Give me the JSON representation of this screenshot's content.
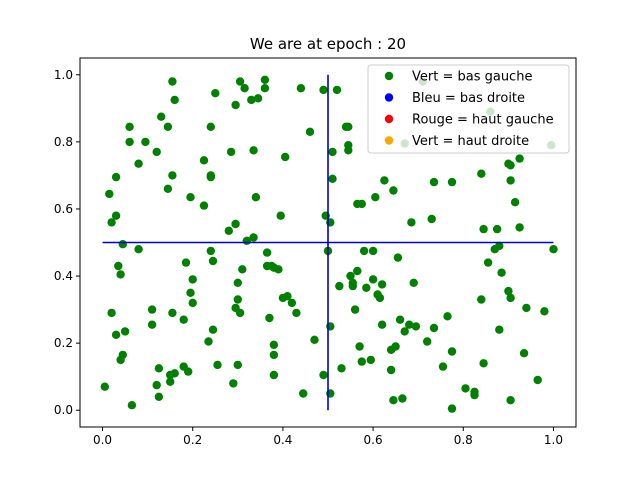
{
  "chart_data": {
    "type": "scatter",
    "title": "We are at epoch : 20",
    "xlabel": "",
    "ylabel": "",
    "xlim": [
      -0.05,
      1.05
    ],
    "ylim": [
      -0.05,
      1.05
    ],
    "grid": false,
    "legend_position": "top-right",
    "xticks": [
      "0.0",
      "0.2",
      "0.4",
      "0.6",
      "0.8",
      "1.0"
    ],
    "yticks": [
      "0.0",
      "0.2",
      "0.4",
      "0.6",
      "0.8",
      "1.0"
    ],
    "lines": [
      {
        "name": "vertical-divider",
        "x": [
          0.5,
          0.5
        ],
        "y": [
          0,
          1
        ],
        "color": "#0000cc"
      },
      {
        "name": "horizontal-divider",
        "x": [
          0,
          1
        ],
        "y": [
          0.5,
          0.5
        ],
        "color": "#0000cc"
      }
    ],
    "legend": [
      {
        "label": "Vert = bas gauche",
        "color": "#008000"
      },
      {
        "label": "Bleu = bas droite",
        "color": "#0000ff"
      },
      {
        "label": "Rouge = haut gauche",
        "color": "#ff0000"
      },
      {
        "label": "Vert = haut droite",
        "color": "#ffa500"
      }
    ],
    "series": [
      {
        "color": "#008000",
        "points": [
          [
            0.005,
            0.07
          ],
          [
            0.02,
            0.29
          ],
          [
            0.015,
            0.645
          ],
          [
            0.02,
            0.56
          ],
          [
            0.03,
            0.695
          ],
          [
            0.03,
            0.58
          ],
          [
            0.03,
            0.225
          ],
          [
            0.035,
            0.43
          ],
          [
            0.04,
            0.405
          ],
          [
            0.04,
            0.15
          ],
          [
            0.045,
            0.495
          ],
          [
            0.045,
            0.165
          ],
          [
            0.05,
            0.235
          ],
          [
            0.06,
            0.8
          ],
          [
            0.06,
            0.845
          ],
          [
            0.065,
            0.015
          ],
          [
            0.08,
            0.735
          ],
          [
            0.08,
            0.48
          ],
          [
            0.095,
            0.8
          ],
          [
            0.11,
            0.3
          ],
          [
            0.11,
            0.255
          ],
          [
            0.12,
            0.77
          ],
          [
            0.12,
            0.075
          ],
          [
            0.125,
            0.04
          ],
          [
            0.125,
            0.125
          ],
          [
            0.13,
            0.875
          ],
          [
            0.145,
            0.845
          ],
          [
            0.145,
            0.66
          ],
          [
            0.15,
            0.085
          ],
          [
            0.15,
            0.105
          ],
          [
            0.155,
            0.98
          ],
          [
            0.155,
            0.29
          ],
          [
            0.155,
            0.7
          ],
          [
            0.16,
            0.925
          ],
          [
            0.16,
            0.11
          ],
          [
            0.18,
            0.27
          ],
          [
            0.18,
            0.13
          ],
          [
            0.185,
            0.44
          ],
          [
            0.19,
            0.115
          ],
          [
            0.195,
            0.635
          ],
          [
            0.195,
            0.35
          ],
          [
            0.2,
            0.32
          ],
          [
            0.2,
            0.39
          ],
          [
            0.225,
            0.745
          ],
          [
            0.225,
            0.61
          ],
          [
            0.235,
            0.205
          ],
          [
            0.24,
            0.845
          ],
          [
            0.24,
            0.695
          ],
          [
            0.24,
            0.7
          ],
          [
            0.24,
            0.475
          ],
          [
            0.245,
            0.445
          ],
          [
            0.245,
            0.24
          ],
          [
            0.25,
            0.945
          ],
          [
            0.255,
            0.135
          ],
          [
            0.28,
            0.535
          ],
          [
            0.285,
            0.77
          ],
          [
            0.29,
            0.08
          ],
          [
            0.295,
            0.91
          ],
          [
            0.295,
            0.305
          ],
          [
            0.295,
            0.555
          ],
          [
            0.3,
            0.33
          ],
          [
            0.3,
            0.135
          ],
          [
            0.3,
            0.38
          ],
          [
            0.305,
            0.98
          ],
          [
            0.305,
            0.29
          ],
          [
            0.31,
            0.42
          ],
          [
            0.315,
            0.96
          ],
          [
            0.32,
            0.505
          ],
          [
            0.33,
            0.925
          ],
          [
            0.335,
            0.515
          ],
          [
            0.335,
            0.775
          ],
          [
            0.34,
            0.635
          ],
          [
            0.345,
            0.93
          ],
          [
            0.36,
            0.985
          ],
          [
            0.36,
            0.96
          ],
          [
            0.365,
            0.47
          ],
          [
            0.365,
            0.43
          ],
          [
            0.37,
            0.275
          ],
          [
            0.375,
            0.43
          ],
          [
            0.38,
            0.195
          ],
          [
            0.38,
            0.425
          ],
          [
            0.38,
            0.105
          ],
          [
            0.38,
            0.165
          ],
          [
            0.39,
            0.42
          ],
          [
            0.395,
            0.58
          ],
          [
            0.4,
            0.335
          ],
          [
            0.405,
            0.755
          ],
          [
            0.41,
            0.34
          ],
          [
            0.42,
            0.32
          ],
          [
            0.43,
            0.29
          ],
          [
            0.44,
            0.96
          ],
          [
            0.445,
            0.05
          ],
          [
            0.46,
            0.83
          ],
          [
            0.47,
            0.21
          ],
          [
            0.49,
            0.105
          ],
          [
            0.49,
            0.955
          ],
          [
            0.495,
            0.58
          ],
          [
            0.5,
            0.475
          ],
          [
            0.505,
            0.56
          ],
          [
            0.505,
            0.25
          ],
          [
            0.505,
            0.05
          ],
          [
            0.51,
            0.77
          ],
          [
            0.51,
            0.69
          ],
          [
            0.52,
            0.955
          ],
          [
            0.525,
            0.37
          ],
          [
            0.53,
            0.125
          ],
          [
            0.54,
            0.845
          ],
          [
            0.545,
            0.845
          ],
          [
            0.545,
            0.775
          ],
          [
            0.545,
            0.79
          ],
          [
            0.55,
            0.4
          ],
          [
            0.555,
            0.37
          ],
          [
            0.555,
            0.38
          ],
          [
            0.56,
            0.3
          ],
          [
            0.565,
            0.615
          ],
          [
            0.565,
            0.415
          ],
          [
            0.57,
            0.19
          ],
          [
            0.575,
            0.145
          ],
          [
            0.575,
            0.615
          ],
          [
            0.58,
            0.475
          ],
          [
            0.585,
            0.365
          ],
          [
            0.595,
            0.15
          ],
          [
            0.6,
            0.39
          ],
          [
            0.6,
            0.475
          ],
          [
            0.605,
            0.635
          ],
          [
            0.61,
            0.345
          ],
          [
            0.615,
            0.335
          ],
          [
            0.62,
            0.375
          ],
          [
            0.62,
            0.255
          ],
          [
            0.625,
            0.685
          ],
          [
            0.64,
            0.12
          ],
          [
            0.64,
            0.18
          ],
          [
            0.645,
            0.655
          ],
          [
            0.645,
            0.03
          ],
          [
            0.65,
            0.19
          ],
          [
            0.655,
            0.455
          ],
          [
            0.66,
            0.27
          ],
          [
            0.665,
            0.035
          ],
          [
            0.67,
            0.795
          ],
          [
            0.67,
            0.235
          ],
          [
            0.68,
            0.255
          ],
          [
            0.685,
            0.56
          ],
          [
            0.69,
            0.38
          ],
          [
            0.695,
            0.25
          ],
          [
            0.71,
            0.98
          ],
          [
            0.72,
            0.205
          ],
          [
            0.73,
            0.57
          ],
          [
            0.735,
            0.68
          ],
          [
            0.735,
            0.245
          ],
          [
            0.755,
            0.13
          ],
          [
            0.765,
            0.28
          ],
          [
            0.775,
            0.68
          ],
          [
            0.775,
            0.175
          ],
          [
            0.775,
            0.005
          ],
          [
            0.805,
            0.065
          ],
          [
            0.825,
            0.055
          ],
          [
            0.825,
            0.045
          ],
          [
            0.84,
            0.705
          ],
          [
            0.84,
            0.33
          ],
          [
            0.845,
            0.14
          ],
          [
            0.845,
            0.54
          ],
          [
            0.855,
            0.44
          ],
          [
            0.86,
            0.89
          ],
          [
            0.87,
            0.48
          ],
          [
            0.875,
            0.54
          ],
          [
            0.88,
            0.24
          ],
          [
            0.88,
            0.49
          ],
          [
            0.885,
            0.41
          ],
          [
            0.9,
            0.735
          ],
          [
            0.9,
            0.355
          ],
          [
            0.905,
            0.335
          ],
          [
            0.905,
            0.03
          ],
          [
            0.905,
            0.685
          ],
          [
            0.905,
            0.73
          ],
          [
            0.915,
            0.62
          ],
          [
            0.925,
            0.75
          ],
          [
            0.925,
            0.545
          ],
          [
            0.935,
            0.17
          ],
          [
            0.94,
            0.305
          ],
          [
            0.965,
            0.09
          ],
          [
            0.98,
            0.295
          ],
          [
            0.995,
            0.79
          ],
          [
            1.0,
            0.48
          ]
        ]
      }
    ]
  }
}
